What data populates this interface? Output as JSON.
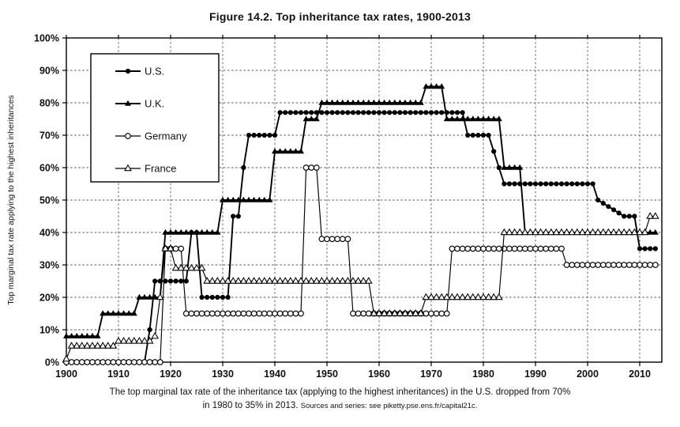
{
  "title": "Figure 14.2. Top inheritance tax rates, 1900-2013",
  "y_axis_title": "Top marginal tax rate applying to the highest inheritances",
  "caption": {
    "line1": "The top marginal tax rate of the inheritance tax (applying to the highest inheritances) in the U.S. dropped from 70%",
    "line2": "in 1980 to 35% in 2013.",
    "source": "Sources and series: see piketty.pse.ens.fr/capital21c."
  },
  "colors": {
    "series_line": "#000000",
    "background": "#ffffff",
    "gridline": "#555555"
  },
  "chart_data": {
    "type": "line",
    "title": "Figure 14.2. Top inheritance tax rates, 1900-2013",
    "xlabel": "",
    "ylabel": "Top marginal tax rate applying to the highest inheritances",
    "xlim": [
      1900,
      2013
    ],
    "ylim": [
      0,
      100
    ],
    "grid": true,
    "legend_position": "top-left",
    "xtick_values": [
      1900,
      1910,
      1920,
      1930,
      1940,
      1950,
      1960,
      1970,
      1980,
      1990,
      2000,
      2010
    ],
    "xtick_labels": [
      "1900",
      "1910",
      "1920",
      "1930",
      "1940",
      "1950",
      "1960",
      "1970",
      "1980",
      "1990",
      "2000",
      "2010"
    ],
    "ytick_values": [
      0,
      10,
      20,
      30,
      40,
      50,
      60,
      70,
      80,
      90,
      100
    ],
    "ytick_labels": [
      "0%",
      "10%",
      "20%",
      "30%",
      "40%",
      "50%",
      "60%",
      "70%",
      "80%",
      "90%",
      "100%"
    ],
    "series": [
      {
        "name": "U.S.",
        "marker": "filled-circle",
        "step_segments": [
          [
            1900,
            1915,
            0
          ],
          [
            1916,
            1916,
            10
          ],
          [
            1917,
            1923,
            25
          ],
          [
            1924,
            1925,
            40
          ],
          [
            1926,
            1931,
            20
          ],
          [
            1932,
            1933,
            45
          ],
          [
            1934,
            1934,
            60
          ],
          [
            1935,
            1940,
            70
          ],
          [
            1941,
            1976,
            77
          ],
          [
            1977,
            1981,
            70
          ],
          [
            1982,
            1982,
            65
          ],
          [
            1983,
            1983,
            60
          ],
          [
            1984,
            2001,
            55
          ],
          [
            2002,
            2002,
            50
          ],
          [
            2003,
            2003,
            49
          ],
          [
            2004,
            2004,
            48
          ],
          [
            2005,
            2005,
            47
          ],
          [
            2006,
            2006,
            46
          ],
          [
            2007,
            2009,
            45
          ],
          [
            2010,
            2013,
            35
          ]
        ]
      },
      {
        "name": "U.K.",
        "marker": "filled-triangle",
        "step_segments": [
          [
            1900,
            1906,
            8
          ],
          [
            1907,
            1913,
            15
          ],
          [
            1914,
            1918,
            20
          ],
          [
            1919,
            1929,
            40
          ],
          [
            1930,
            1939,
            50
          ],
          [
            1940,
            1945,
            65
          ],
          [
            1946,
            1948,
            75
          ],
          [
            1949,
            1968,
            80
          ],
          [
            1969,
            1972,
            85
          ],
          [
            1973,
            1983,
            75
          ],
          [
            1984,
            1987,
            60
          ],
          [
            1988,
            2013,
            40
          ]
        ]
      },
      {
        "name": "Germany",
        "marker": "open-circle",
        "step_segments": [
          [
            1900,
            1918,
            0
          ],
          [
            1919,
            1922,
            35
          ],
          [
            1923,
            1945,
            15
          ],
          [
            1946,
            1948,
            60
          ],
          [
            1949,
            1954,
            38
          ],
          [
            1955,
            1973,
            15
          ],
          [
            1974,
            1995,
            35
          ],
          [
            1996,
            2013,
            30
          ]
        ]
      },
      {
        "name": "France",
        "marker": "open-triangle",
        "step_segments": [
          [
            1900,
            1900,
            1
          ],
          [
            1901,
            1909,
            5
          ],
          [
            1910,
            1916,
            6.5
          ],
          [
            1917,
            1917,
            8
          ],
          [
            1918,
            1918,
            20
          ],
          [
            1919,
            1920,
            35
          ],
          [
            1921,
            1926,
            29
          ],
          [
            1927,
            1958,
            25
          ],
          [
            1959,
            1968,
            15
          ],
          [
            1969,
            1983,
            20
          ],
          [
            1984,
            2011,
            40
          ],
          [
            2012,
            2013,
            45
          ]
        ]
      }
    ]
  }
}
